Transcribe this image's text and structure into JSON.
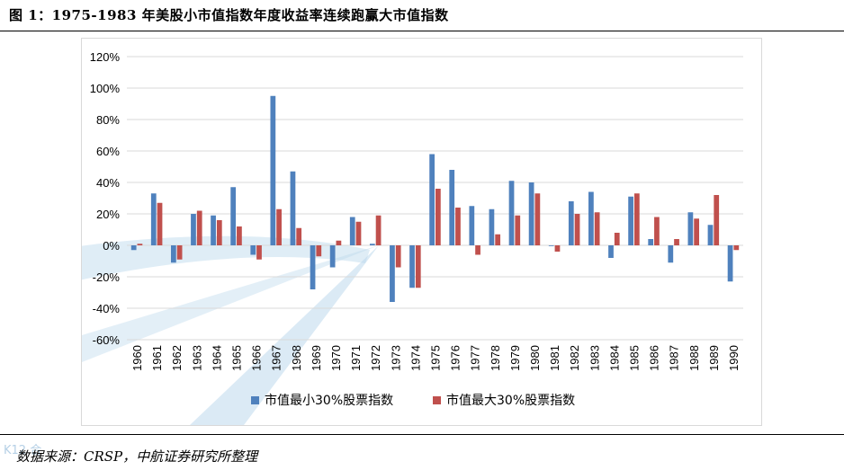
{
  "header": {
    "title": "图 1：1975-1983 年美股小市值指数年度收益率连续跑赢大市值指数"
  },
  "footer": {
    "source": "数据来源：CRSP，中航证券研究所整理",
    "watermark": "K12 合"
  },
  "colors": {
    "small_cap": "#4F81BD",
    "large_cap": "#C0504D",
    "gridline": "#d9d9d9",
    "watermark": "#b8d6ec"
  },
  "chart_data": {
    "type": "bar",
    "categories": [
      "1960",
      "1961",
      "1962",
      "1963",
      "1964",
      "1965",
      "1966",
      "1967",
      "1968",
      "1969",
      "1970",
      "1971",
      "1972",
      "1973",
      "1974",
      "1975",
      "1976",
      "1977",
      "1978",
      "1979",
      "1980",
      "1981",
      "1982",
      "1983",
      "1984",
      "1985",
      "1986",
      "1987",
      "1988",
      "1989",
      "1990"
    ],
    "series": [
      {
        "name": "市值最小30%股票指数",
        "values": [
          -3,
          33,
          -11,
          20,
          19,
          37,
          -6,
          95,
          47,
          -28,
          -14,
          18,
          1,
          -36,
          -27,
          58,
          48,
          25,
          23,
          41,
          40,
          0,
          28,
          34,
          -8,
          31,
          4,
          -11,
          21,
          13,
          -23
        ]
      },
      {
        "name": "市值最大30%股票指数",
        "values": [
          1,
          27,
          -9,
          22,
          16,
          12,
          -9,
          23,
          11,
          -7,
          3,
          15,
          19,
          -14,
          -27,
          36,
          24,
          -6,
          7,
          19,
          33,
          -4,
          20,
          21,
          8,
          33,
          18,
          4,
          17,
          32,
          -3
        ]
      }
    ],
    "ylim": [
      -60,
      120
    ],
    "yticks": [
      "-60%",
      "-40%",
      "-20%",
      "0%",
      "20%",
      "40%",
      "60%",
      "80%",
      "100%",
      "120%"
    ],
    "grid": true,
    "legend_position": "bottom"
  }
}
